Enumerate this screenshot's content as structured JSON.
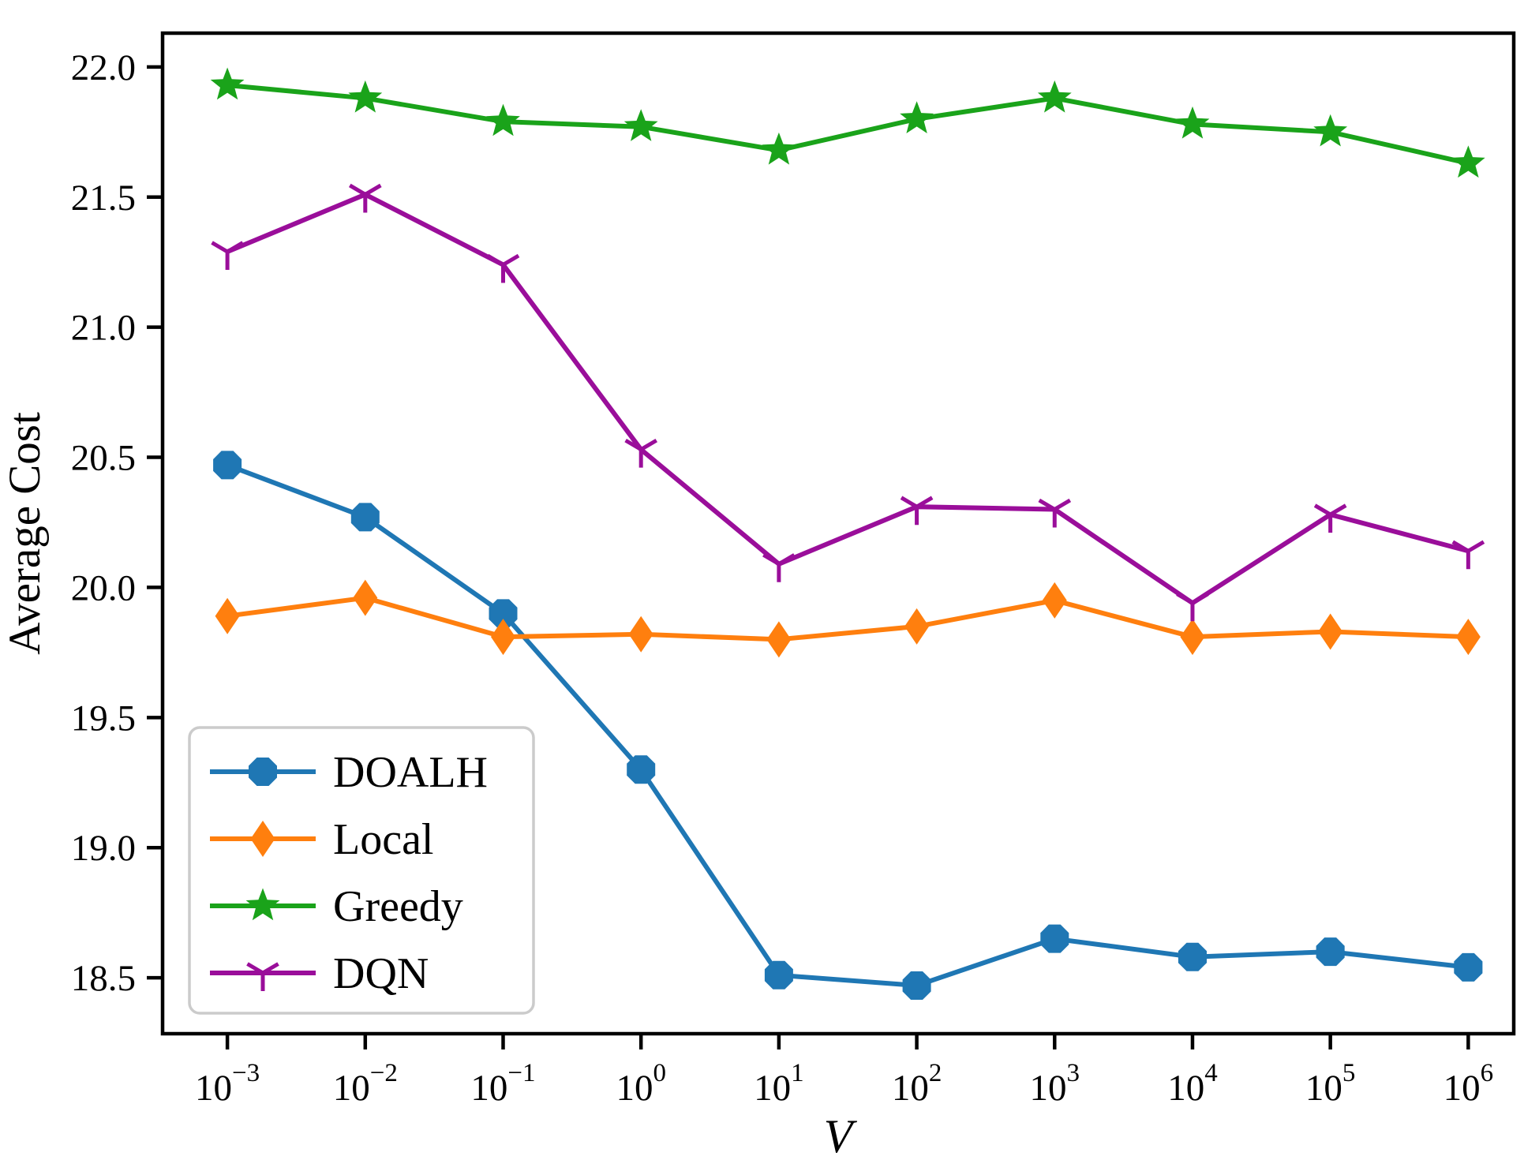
{
  "figure": {
    "background": "#ffffff",
    "axis_color": "#000000",
    "legend_border_color": "#cbcbcb",
    "legend_background": "#ffffff"
  },
  "chart_data": {
    "type": "line",
    "title": "",
    "xlabel": "V",
    "ylabel": "Average Cost",
    "x_scale": "log10",
    "x": [
      0.001,
      0.01,
      0.1,
      1,
      10,
      100,
      1000,
      10000,
      100000,
      1000000
    ],
    "x_exponents": [
      -3,
      -2,
      -1,
      0,
      1,
      2,
      3,
      4,
      5,
      6
    ],
    "x_tick_labels": [
      "10^-3",
      "10^-2",
      "10^-1",
      "10^0",
      "10^1",
      "10^2",
      "10^3",
      "10^4",
      "10^5",
      "10^6"
    ],
    "y_ticks": [
      18.5,
      19.0,
      19.5,
      20.0,
      20.5,
      21.0,
      21.5,
      22.0
    ],
    "y_tick_labels": [
      "18.5",
      "19.0",
      "19.5",
      "20.0",
      "20.5",
      "21.0",
      "21.5",
      "22.0"
    ],
    "xlim_log10": [
      -3.47,
      6.33
    ],
    "ylim": [
      18.285,
      22.13
    ],
    "grid": false,
    "legend": {
      "position": "lower left",
      "entries": [
        "DOALH",
        "Local",
        "Greedy",
        "DQN"
      ]
    },
    "series": [
      {
        "name": "DOALH",
        "color": "#1f77b4",
        "marker": "octagon",
        "values": [
          20.47,
          20.27,
          19.9,
          19.3,
          18.51,
          18.47,
          18.65,
          18.58,
          18.6,
          18.54
        ]
      },
      {
        "name": "Local",
        "color": "#ff7f0e",
        "marker": "diamond",
        "values": [
          19.89,
          19.96,
          19.81,
          19.82,
          19.8,
          19.85,
          19.95,
          19.81,
          19.83,
          19.81
        ]
      },
      {
        "name": "Greedy",
        "color": "#1aa31a",
        "marker": "star",
        "values": [
          21.93,
          21.88,
          21.79,
          21.77,
          21.68,
          21.8,
          21.88,
          21.78,
          21.75,
          21.63
        ]
      },
      {
        "name": "DQN",
        "color": "#9a0e9a",
        "marker": "tri-down",
        "values": [
          21.29,
          21.51,
          21.24,
          20.53,
          20.09,
          20.31,
          20.3,
          19.94,
          20.28,
          20.14
        ]
      }
    ]
  }
}
